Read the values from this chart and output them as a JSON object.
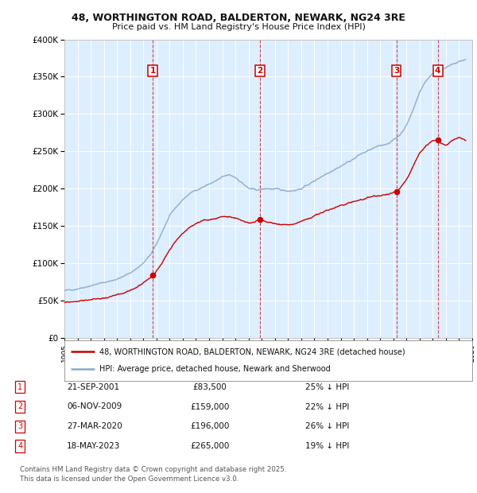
{
  "title_line1": "48, WORTHINGTON ROAD, BALDERTON, NEWARK, NG24 3RE",
  "title_line2": "Price paid vs. HM Land Registry's House Price Index (HPI)",
  "background_color": "#ffffff",
  "plot_bg_color": "#ddeeff",
  "grid_color": "#ffffff",
  "hpi_color": "#88aacc",
  "price_color": "#cc0000",
  "transactions": [
    {
      "num": 1,
      "date_str": "21-SEP-2001",
      "price": 83500,
      "x_year": 2001.72
    },
    {
      "num": 2,
      "date_str": "06-NOV-2009",
      "price": 159000,
      "x_year": 2009.85
    },
    {
      "num": 3,
      "date_str": "27-MAR-2020",
      "price": 196000,
      "x_year": 2020.23
    },
    {
      "num": 4,
      "date_str": "18-MAY-2023",
      "price": 265000,
      "x_year": 2023.38
    }
  ],
  "legend_line1": "48, WORTHINGTON ROAD, BALDERTON, NEWARK, NG24 3RE (detached house)",
  "legend_line2": "HPI: Average price, detached house, Newark and Sherwood",
  "footnote": "Contains HM Land Registry data © Crown copyright and database right 2025.\nThis data is licensed under the Open Government Licence v3.0.",
  "table_rows": [
    {
      "num": 1,
      "date": "21-SEP-2001",
      "price": "£83,500",
      "pct": "25% ↓ HPI"
    },
    {
      "num": 2,
      "date": "06-NOV-2009",
      "price": "£159,000",
      "pct": "22% ↓ HPI"
    },
    {
      "num": 3,
      "date": "27-MAR-2020",
      "price": "£196,000",
      "pct": "26% ↓ HPI"
    },
    {
      "num": 4,
      "date": "18-MAY-2023",
      "price": "£265,000",
      "pct": "19% ↓ HPI"
    }
  ],
  "xmin": 1995,
  "xmax": 2026,
  "ymin": 0,
  "ymax": 400000,
  "hpi_base_points": [
    [
      1995.0,
      62000
    ],
    [
      1995.5,
      64000
    ],
    [
      1996.0,
      66000
    ],
    [
      1996.5,
      68000
    ],
    [
      1997.0,
      70000
    ],
    [
      1997.5,
      72000
    ],
    [
      1998.0,
      74000
    ],
    [
      1998.5,
      76000
    ],
    [
      1999.0,
      79000
    ],
    [
      1999.5,
      82000
    ],
    [
      2000.0,
      87000
    ],
    [
      2000.5,
      93000
    ],
    [
      2001.0,
      100000
    ],
    [
      2001.5,
      110000
    ],
    [
      2002.0,
      125000
    ],
    [
      2002.5,
      145000
    ],
    [
      2003.0,
      163000
    ],
    [
      2003.5,
      175000
    ],
    [
      2004.0,
      185000
    ],
    [
      2004.5,
      193000
    ],
    [
      2005.0,
      198000
    ],
    [
      2005.5,
      202000
    ],
    [
      2006.0,
      206000
    ],
    [
      2006.5,
      210000
    ],
    [
      2007.0,
      215000
    ],
    [
      2007.5,
      218000
    ],
    [
      2008.0,
      215000
    ],
    [
      2008.5,
      208000
    ],
    [
      2009.0,
      200000
    ],
    [
      2009.5,
      198000
    ],
    [
      2010.0,
      199000
    ],
    [
      2010.5,
      200000
    ],
    [
      2011.0,
      199000
    ],
    [
      2011.5,
      198000
    ],
    [
      2012.0,
      197000
    ],
    [
      2012.5,
      198000
    ],
    [
      2013.0,
      200000
    ],
    [
      2013.5,
      205000
    ],
    [
      2014.0,
      210000
    ],
    [
      2014.5,
      216000
    ],
    [
      2015.0,
      221000
    ],
    [
      2015.5,
      226000
    ],
    [
      2016.0,
      230000
    ],
    [
      2016.5,
      235000
    ],
    [
      2017.0,
      240000
    ],
    [
      2017.5,
      246000
    ],
    [
      2018.0,
      250000
    ],
    [
      2018.5,
      254000
    ],
    [
      2019.0,
      257000
    ],
    [
      2019.5,
      260000
    ],
    [
      2020.0,
      265000
    ],
    [
      2020.5,
      272000
    ],
    [
      2021.0,
      285000
    ],
    [
      2021.5,
      305000
    ],
    [
      2022.0,
      330000
    ],
    [
      2022.5,
      345000
    ],
    [
      2023.0,
      355000
    ],
    [
      2023.5,
      358000
    ],
    [
      2024.0,
      362000
    ],
    [
      2024.5,
      366000
    ],
    [
      2025.0,
      370000
    ],
    [
      2025.5,
      373000
    ]
  ],
  "price_base_points": [
    [
      1995.0,
      47000
    ],
    [
      1995.5,
      48000
    ],
    [
      1996.0,
      49000
    ],
    [
      1996.5,
      50000
    ],
    [
      1997.0,
      51000
    ],
    [
      1997.5,
      52000
    ],
    [
      1998.0,
      53000
    ],
    [
      1998.5,
      55000
    ],
    [
      1999.0,
      57000
    ],
    [
      1999.5,
      59000
    ],
    [
      2000.0,
      63000
    ],
    [
      2000.5,
      68000
    ],
    [
      2001.0,
      74000
    ],
    [
      2001.5,
      80000
    ],
    [
      2001.72,
      83500
    ],
    [
      2002.0,
      90000
    ],
    [
      2002.5,
      103000
    ],
    [
      2003.0,
      118000
    ],
    [
      2003.5,
      130000
    ],
    [
      2004.0,
      140000
    ],
    [
      2004.5,
      148000
    ],
    [
      2005.0,
      153000
    ],
    [
      2005.5,
      156000
    ],
    [
      2006.0,
      158000
    ],
    [
      2006.5,
      160000
    ],
    [
      2007.0,
      163000
    ],
    [
      2007.5,
      162000
    ],
    [
      2008.0,
      160000
    ],
    [
      2008.5,
      157000
    ],
    [
      2009.0,
      154000
    ],
    [
      2009.5,
      155000
    ],
    [
      2009.85,
      159000
    ],
    [
      2010.0,
      157000
    ],
    [
      2010.5,
      155000
    ],
    [
      2011.0,
      153000
    ],
    [
      2011.5,
      152000
    ],
    [
      2012.0,
      151000
    ],
    [
      2012.5,
      153000
    ],
    [
      2013.0,
      156000
    ],
    [
      2013.5,
      159000
    ],
    [
      2014.0,
      163000
    ],
    [
      2014.5,
      167000
    ],
    [
      2015.0,
      171000
    ],
    [
      2015.5,
      174000
    ],
    [
      2016.0,
      177000
    ],
    [
      2016.5,
      180000
    ],
    [
      2017.0,
      183000
    ],
    [
      2017.5,
      185000
    ],
    [
      2018.0,
      187000
    ],
    [
      2018.5,
      189000
    ],
    [
      2019.0,
      190000
    ],
    [
      2019.5,
      192000
    ],
    [
      2020.0,
      194000
    ],
    [
      2020.23,
      196000
    ],
    [
      2020.5,
      200000
    ],
    [
      2021.0,
      212000
    ],
    [
      2021.5,
      230000
    ],
    [
      2022.0,
      248000
    ],
    [
      2022.5,
      258000
    ],
    [
      2023.0,
      263000
    ],
    [
      2023.38,
      265000
    ],
    [
      2023.5,
      262000
    ],
    [
      2024.0,
      258000
    ],
    [
      2024.5,
      264000
    ],
    [
      2025.0,
      268000
    ],
    [
      2025.5,
      265000
    ]
  ]
}
